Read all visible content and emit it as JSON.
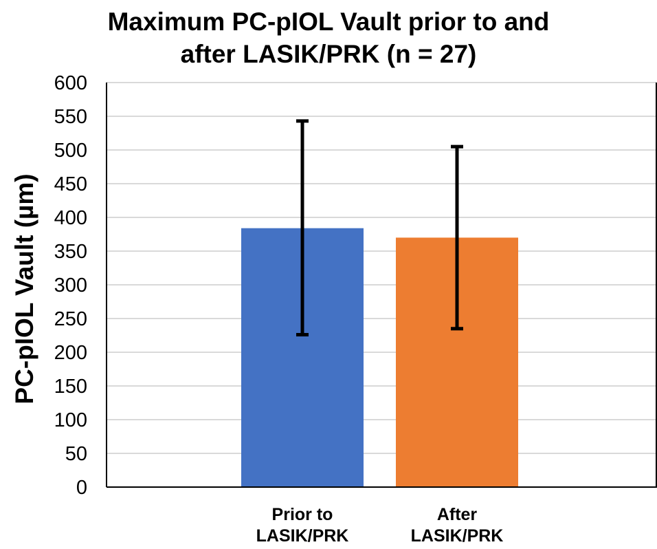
{
  "chart_data": {
    "type": "bar",
    "title_lines": [
      "Maximum PC-pIOL Vault prior to and",
      "after LASIK/PRK (n = 27)"
    ],
    "ylabel": "PC-pIOL Vault (µm)",
    "xlabel": "",
    "categories": [
      [
        "Prior to",
        "LASIK/PRK"
      ],
      [
        "After",
        "LASIK/PRK"
      ]
    ],
    "values": [
      384,
      370
    ],
    "error_bars": [
      {
        "low": 226,
        "high": 543
      },
      {
        "low": 235,
        "high": 505
      }
    ],
    "colors": [
      "#4472C4",
      "#ED7D31"
    ],
    "ylim": [
      0,
      600
    ],
    "yticks": [
      "0",
      "50",
      "100",
      "150",
      "200",
      "250",
      "300",
      "350",
      "400",
      "450",
      "500",
      "550",
      "600"
    ],
    "grid": true,
    "legend": "none"
  }
}
